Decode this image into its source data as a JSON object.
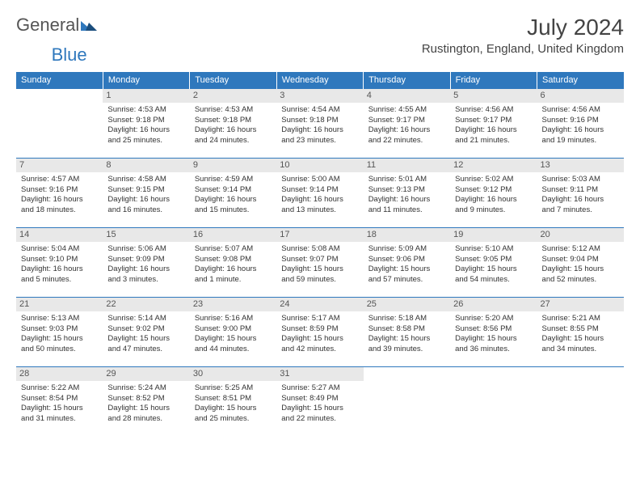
{
  "brand": {
    "name_a": "General",
    "name_b": "Blue"
  },
  "title": "July 2024",
  "location": "Rustington, England, United Kingdom",
  "colors": {
    "header_bg": "#2f78bd",
    "header_text": "#ffffff",
    "day_num_bg": "#e8e8e8",
    "day_num_text": "#555555",
    "cell_border": "#2f78bd",
    "body_text": "#333333",
    "background": "#ffffff"
  },
  "typography": {
    "month_title_fontsize": 28,
    "location_fontsize": 15,
    "dayheader_fontsize": 11,
    "daynum_fontsize": 11,
    "cell_fontsize": 9.5
  },
  "day_headers": [
    "Sunday",
    "Monday",
    "Tuesday",
    "Wednesday",
    "Thursday",
    "Friday",
    "Saturday"
  ],
  "weeks": [
    [
      {
        "n": "",
        "sr": "",
        "ss": "",
        "d1": "",
        "d2": ""
      },
      {
        "n": "1",
        "sr": "Sunrise: 4:53 AM",
        "ss": "Sunset: 9:18 PM",
        "d1": "Daylight: 16 hours",
        "d2": "and 25 minutes."
      },
      {
        "n": "2",
        "sr": "Sunrise: 4:53 AM",
        "ss": "Sunset: 9:18 PM",
        "d1": "Daylight: 16 hours",
        "d2": "and 24 minutes."
      },
      {
        "n": "3",
        "sr": "Sunrise: 4:54 AM",
        "ss": "Sunset: 9:18 PM",
        "d1": "Daylight: 16 hours",
        "d2": "and 23 minutes."
      },
      {
        "n": "4",
        "sr": "Sunrise: 4:55 AM",
        "ss": "Sunset: 9:17 PM",
        "d1": "Daylight: 16 hours",
        "d2": "and 22 minutes."
      },
      {
        "n": "5",
        "sr": "Sunrise: 4:56 AM",
        "ss": "Sunset: 9:17 PM",
        "d1": "Daylight: 16 hours",
        "d2": "and 21 minutes."
      },
      {
        "n": "6",
        "sr": "Sunrise: 4:56 AM",
        "ss": "Sunset: 9:16 PM",
        "d1": "Daylight: 16 hours",
        "d2": "and 19 minutes."
      }
    ],
    [
      {
        "n": "7",
        "sr": "Sunrise: 4:57 AM",
        "ss": "Sunset: 9:16 PM",
        "d1": "Daylight: 16 hours",
        "d2": "and 18 minutes."
      },
      {
        "n": "8",
        "sr": "Sunrise: 4:58 AM",
        "ss": "Sunset: 9:15 PM",
        "d1": "Daylight: 16 hours",
        "d2": "and 16 minutes."
      },
      {
        "n": "9",
        "sr": "Sunrise: 4:59 AM",
        "ss": "Sunset: 9:14 PM",
        "d1": "Daylight: 16 hours",
        "d2": "and 15 minutes."
      },
      {
        "n": "10",
        "sr": "Sunrise: 5:00 AM",
        "ss": "Sunset: 9:14 PM",
        "d1": "Daylight: 16 hours",
        "d2": "and 13 minutes."
      },
      {
        "n": "11",
        "sr": "Sunrise: 5:01 AM",
        "ss": "Sunset: 9:13 PM",
        "d1": "Daylight: 16 hours",
        "d2": "and 11 minutes."
      },
      {
        "n": "12",
        "sr": "Sunrise: 5:02 AM",
        "ss": "Sunset: 9:12 PM",
        "d1": "Daylight: 16 hours",
        "d2": "and 9 minutes."
      },
      {
        "n": "13",
        "sr": "Sunrise: 5:03 AM",
        "ss": "Sunset: 9:11 PM",
        "d1": "Daylight: 16 hours",
        "d2": "and 7 minutes."
      }
    ],
    [
      {
        "n": "14",
        "sr": "Sunrise: 5:04 AM",
        "ss": "Sunset: 9:10 PM",
        "d1": "Daylight: 16 hours",
        "d2": "and 5 minutes."
      },
      {
        "n": "15",
        "sr": "Sunrise: 5:06 AM",
        "ss": "Sunset: 9:09 PM",
        "d1": "Daylight: 16 hours",
        "d2": "and 3 minutes."
      },
      {
        "n": "16",
        "sr": "Sunrise: 5:07 AM",
        "ss": "Sunset: 9:08 PM",
        "d1": "Daylight: 16 hours",
        "d2": "and 1 minute."
      },
      {
        "n": "17",
        "sr": "Sunrise: 5:08 AM",
        "ss": "Sunset: 9:07 PM",
        "d1": "Daylight: 15 hours",
        "d2": "and 59 minutes."
      },
      {
        "n": "18",
        "sr": "Sunrise: 5:09 AM",
        "ss": "Sunset: 9:06 PM",
        "d1": "Daylight: 15 hours",
        "d2": "and 57 minutes."
      },
      {
        "n": "19",
        "sr": "Sunrise: 5:10 AM",
        "ss": "Sunset: 9:05 PM",
        "d1": "Daylight: 15 hours",
        "d2": "and 54 minutes."
      },
      {
        "n": "20",
        "sr": "Sunrise: 5:12 AM",
        "ss": "Sunset: 9:04 PM",
        "d1": "Daylight: 15 hours",
        "d2": "and 52 minutes."
      }
    ],
    [
      {
        "n": "21",
        "sr": "Sunrise: 5:13 AM",
        "ss": "Sunset: 9:03 PM",
        "d1": "Daylight: 15 hours",
        "d2": "and 50 minutes."
      },
      {
        "n": "22",
        "sr": "Sunrise: 5:14 AM",
        "ss": "Sunset: 9:02 PM",
        "d1": "Daylight: 15 hours",
        "d2": "and 47 minutes."
      },
      {
        "n": "23",
        "sr": "Sunrise: 5:16 AM",
        "ss": "Sunset: 9:00 PM",
        "d1": "Daylight: 15 hours",
        "d2": "and 44 minutes."
      },
      {
        "n": "24",
        "sr": "Sunrise: 5:17 AM",
        "ss": "Sunset: 8:59 PM",
        "d1": "Daylight: 15 hours",
        "d2": "and 42 minutes."
      },
      {
        "n": "25",
        "sr": "Sunrise: 5:18 AM",
        "ss": "Sunset: 8:58 PM",
        "d1": "Daylight: 15 hours",
        "d2": "and 39 minutes."
      },
      {
        "n": "26",
        "sr": "Sunrise: 5:20 AM",
        "ss": "Sunset: 8:56 PM",
        "d1": "Daylight: 15 hours",
        "d2": "and 36 minutes."
      },
      {
        "n": "27",
        "sr": "Sunrise: 5:21 AM",
        "ss": "Sunset: 8:55 PM",
        "d1": "Daylight: 15 hours",
        "d2": "and 34 minutes."
      }
    ],
    [
      {
        "n": "28",
        "sr": "Sunrise: 5:22 AM",
        "ss": "Sunset: 8:54 PM",
        "d1": "Daylight: 15 hours",
        "d2": "and 31 minutes."
      },
      {
        "n": "29",
        "sr": "Sunrise: 5:24 AM",
        "ss": "Sunset: 8:52 PM",
        "d1": "Daylight: 15 hours",
        "d2": "and 28 minutes."
      },
      {
        "n": "30",
        "sr": "Sunrise: 5:25 AM",
        "ss": "Sunset: 8:51 PM",
        "d1": "Daylight: 15 hours",
        "d2": "and 25 minutes."
      },
      {
        "n": "31",
        "sr": "Sunrise: 5:27 AM",
        "ss": "Sunset: 8:49 PM",
        "d1": "Daylight: 15 hours",
        "d2": "and 22 minutes."
      },
      {
        "n": "",
        "sr": "",
        "ss": "",
        "d1": "",
        "d2": ""
      },
      {
        "n": "",
        "sr": "",
        "ss": "",
        "d1": "",
        "d2": ""
      },
      {
        "n": "",
        "sr": "",
        "ss": "",
        "d1": "",
        "d2": ""
      }
    ]
  ]
}
